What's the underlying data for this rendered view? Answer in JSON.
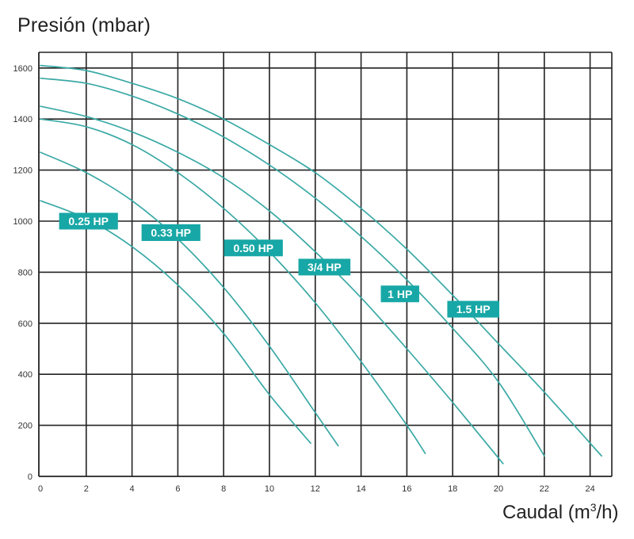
{
  "chart_data": {
    "type": "line",
    "ylabel": "Presión (mbar)",
    "xlabel_prefix": "Caudal (m",
    "xlabel_sup": "3",
    "xlabel_suffix": "/h)",
    "xlim": [
      0,
      25
    ],
    "ylim": [
      0,
      1600
    ],
    "x_ticks": [
      0,
      2,
      4,
      6,
      8,
      10,
      12,
      14,
      16,
      18,
      20,
      22,
      24
    ],
    "y_ticks": [
      0,
      200,
      400,
      600,
      800,
      1000,
      1200,
      1400,
      1600
    ],
    "grid": true,
    "line_color": "#3aa9a5",
    "label_color": "#17a7a6",
    "series": [
      {
        "name": "0.25 HP",
        "x": [
          0,
          2,
          4,
          6,
          8,
          10,
          11.8
        ],
        "y": [
          1080,
          1010,
          900,
          750,
          560,
          320,
          130
        ]
      },
      {
        "name": "0.33 HP",
        "x": [
          0,
          2,
          4,
          6,
          8,
          10,
          12,
          13
        ],
        "y": [
          1270,
          1190,
          1080,
          930,
          740,
          510,
          250,
          120
        ]
      },
      {
        "name": "0.50 HP",
        "x": [
          0,
          2,
          4,
          6,
          8,
          10,
          12,
          14,
          16,
          16.8
        ],
        "y": [
          1400,
          1370,
          1300,
          1190,
          1050,
          880,
          680,
          450,
          200,
          90
        ]
      },
      {
        "name": "3/4 HP",
        "x": [
          0,
          2,
          4,
          6,
          8,
          10,
          12,
          14,
          16,
          18,
          20.2
        ],
        "y": [
          1450,
          1410,
          1350,
          1270,
          1170,
          1040,
          880,
          700,
          500,
          290,
          50
        ]
      },
      {
        "name": "1 HP",
        "x": [
          0,
          2,
          4,
          6,
          8,
          10,
          12,
          14,
          16,
          18,
          20,
          22
        ],
        "y": [
          1560,
          1540,
          1490,
          1420,
          1330,
          1220,
          1090,
          940,
          770,
          580,
          370,
          80
        ]
      },
      {
        "name": "1.5 HP",
        "x": [
          0,
          2,
          4,
          6,
          8,
          10,
          12,
          14,
          16,
          18,
          20,
          22,
          24.5
        ],
        "y": [
          1610,
          1590,
          1540,
          1480,
          1400,
          1300,
          1190,
          1050,
          890,
          710,
          520,
          330,
          80
        ]
      }
    ],
    "annotations": [
      {
        "text": "0.25 HP",
        "x": 2.1,
        "y": 1000
      },
      {
        "text": "0.33 HP",
        "x": 5.7,
        "y": 955
      },
      {
        "text": "0.50 HP",
        "x": 9.3,
        "y": 895
      },
      {
        "text": "3/4 HP",
        "x": 12.4,
        "y": 820
      },
      {
        "text": "1 HP",
        "x": 15.7,
        "y": 715
      },
      {
        "text": "1.5 HP",
        "x": 18.9,
        "y": 655
      }
    ]
  }
}
